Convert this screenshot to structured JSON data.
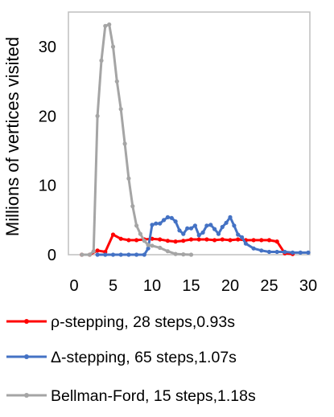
{
  "chart_data": {
    "type": "line",
    "title": "",
    "xlabel": "",
    "ylabel": "Millions of vertices visited",
    "xlim": [
      0,
      30
    ],
    "ylim": [
      0,
      35
    ],
    "xticks": [
      "0",
      "5",
      "10",
      "15",
      "20",
      "25",
      "30"
    ],
    "yticks": [
      "0",
      "10",
      "20",
      "30"
    ],
    "grid": false,
    "legend_position": "bottom",
    "series": [
      {
        "name": "ρ-stepping, 28 steps,0.93s",
        "color": "#ff0000",
        "x": [
          1,
          2,
          3,
          4,
          5,
          6,
          7,
          8,
          9,
          10,
          11,
          12,
          13,
          14,
          15,
          16,
          17,
          18,
          19,
          20,
          21,
          22,
          23,
          24,
          25,
          26,
          27,
          28
        ],
        "y": [
          0,
          0,
          0.6,
          0.4,
          2.9,
          2.3,
          2.1,
          2.1,
          2.2,
          2.3,
          2.2,
          2.0,
          1.9,
          2.0,
          2.2,
          2.2,
          2.2,
          2.1,
          2.2,
          2.1,
          2.2,
          2.1,
          2.1,
          2.1,
          2.1,
          1.9,
          0.2,
          0.1
        ]
      },
      {
        "name": "Δ-stepping, 65 steps,1.07s",
        "color": "#4472c4",
        "x": [
          3,
          4,
          5,
          6,
          7,
          8,
          9,
          9.5,
          10,
          10.5,
          11,
          11.5,
          12,
          12.5,
          13,
          13.5,
          14,
          14.5,
          15,
          15.5,
          16,
          16.5,
          17,
          17.5,
          18,
          18.5,
          19,
          19.5,
          20,
          20.5,
          21,
          21.5,
          22,
          23,
          24,
          25,
          26,
          27,
          28,
          29,
          30
        ],
        "y": [
          0,
          0,
          0,
          0,
          0,
          0,
          0,
          0.9,
          4.3,
          4.5,
          4.5,
          5.0,
          5.4,
          5.3,
          4.8,
          3.5,
          3.0,
          3.8,
          3.8,
          4.2,
          2.8,
          3.2,
          4.2,
          4.3,
          3.7,
          3.0,
          4.0,
          4.6,
          5.4,
          4.2,
          2.9,
          2.5,
          1.6,
          0.9,
          0.6,
          0.4,
          0.4,
          0.4,
          0.3,
          0.3,
          0.3
        ]
      },
      {
        "name": "Bellman-Ford, 15 steps,1.18s",
        "color": "#a5a5a5",
        "x": [
          1,
          2,
          2.5,
          3,
          3.5,
          4,
          4.5,
          5,
          5.5,
          6,
          6.5,
          7,
          7.5,
          8,
          8.5,
          9,
          9.5,
          10,
          11,
          12,
          13,
          14,
          15
        ],
        "y": [
          0,
          0,
          0.5,
          20,
          28,
          33,
          33.2,
          30,
          25,
          21,
          16,
          11,
          7,
          4.2,
          3.0,
          2.0,
          1.4,
          1.3,
          1.0,
          0.5,
          0.1,
          0.05,
          0.0
        ]
      }
    ]
  }
}
